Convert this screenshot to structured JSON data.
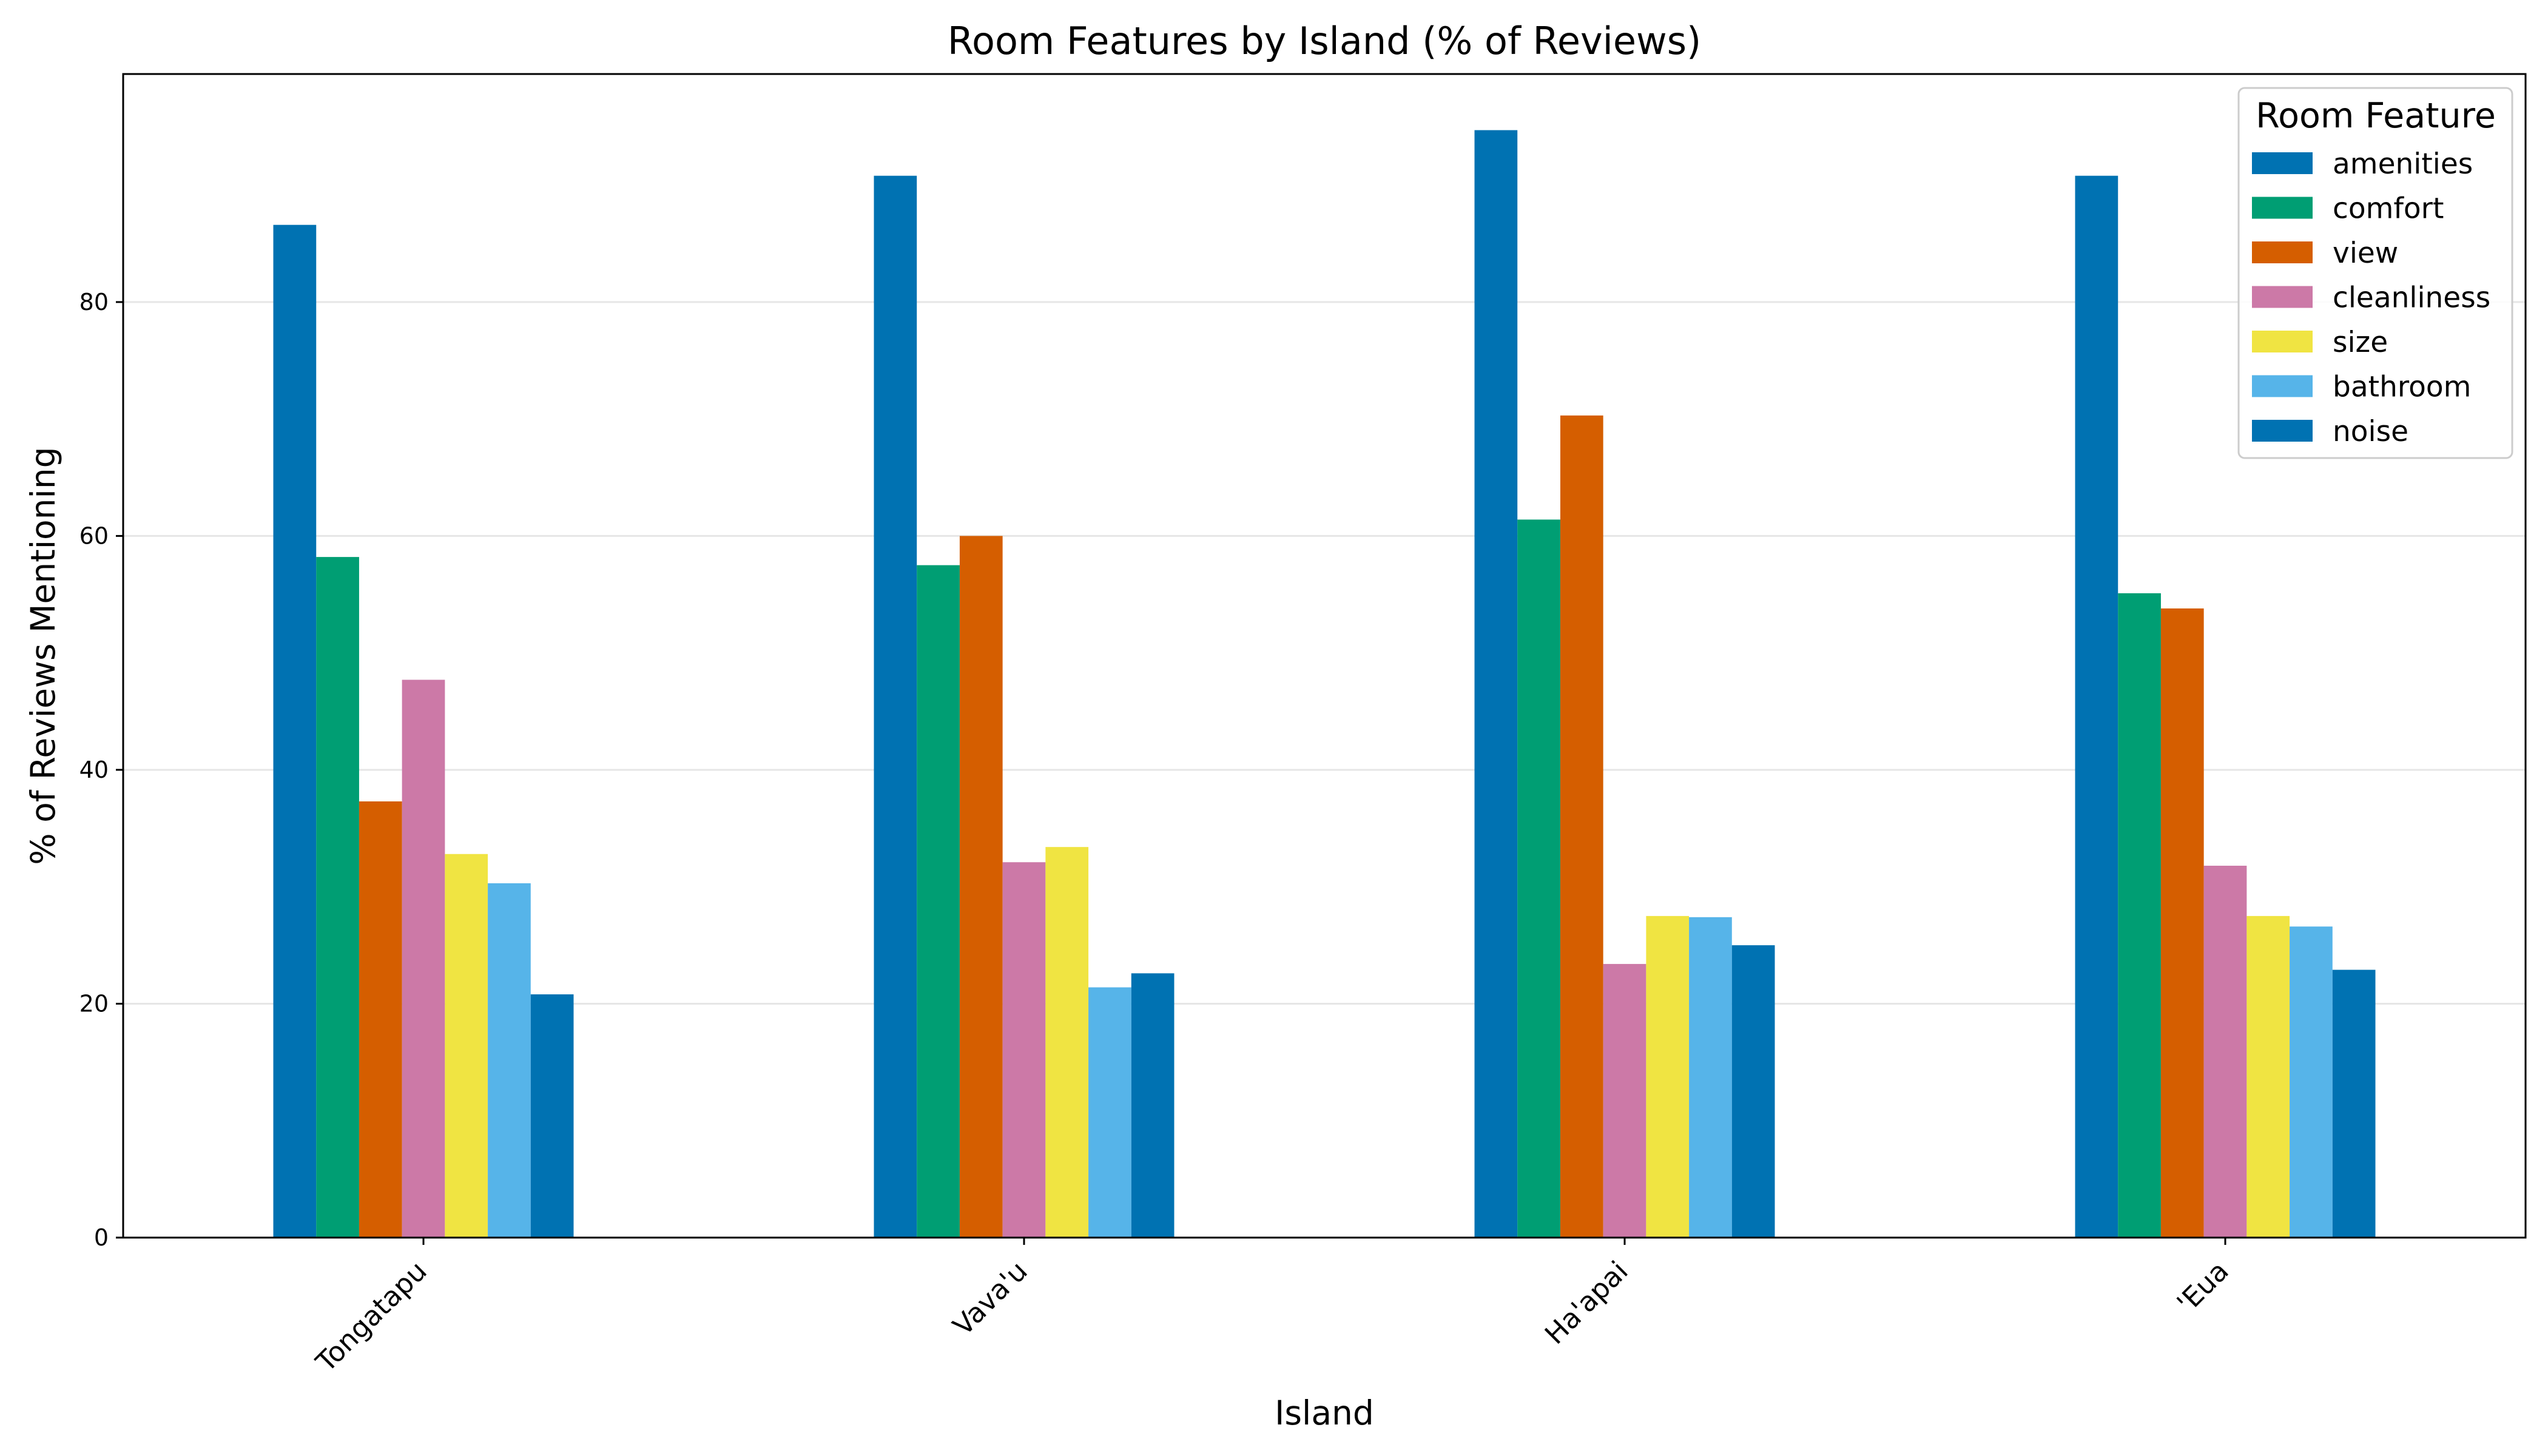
{
  "chart_data": {
    "type": "bar",
    "title": "Room Features by Island (% of Reviews)",
    "xlabel": "Island",
    "ylabel": "% of Reviews Mentioning",
    "categories": [
      "Tongatapu",
      "Vava'u",
      "Ha'apai",
      "'Eua"
    ],
    "ylim": [
      0,
      99.5
    ],
    "yticks": [
      0,
      20,
      40,
      60,
      80
    ],
    "grid": "y",
    "legend": {
      "title": "Room Feature",
      "position": "top-right"
    },
    "series": [
      {
        "name": "amenities",
        "color": "#0072b2",
        "values": [
          86.6,
          90.8,
          94.7,
          90.8
        ]
      },
      {
        "name": "comfort",
        "color": "#009e73",
        "values": [
          58.2,
          57.5,
          61.4,
          55.1
        ]
      },
      {
        "name": "view",
        "color": "#d55e00",
        "values": [
          37.3,
          60.0,
          70.3,
          53.8
        ]
      },
      {
        "name": "cleanliness",
        "color": "#cc79a7",
        "values": [
          47.7,
          32.1,
          23.4,
          31.8
        ]
      },
      {
        "name": "size",
        "color": "#f0e442",
        "values": [
          32.8,
          33.4,
          27.5,
          27.5
        ]
      },
      {
        "name": "bathroom",
        "color": "#56b4e9",
        "values": [
          30.3,
          21.4,
          27.4,
          26.6
        ]
      },
      {
        "name": "noise",
        "color": "#0072b2",
        "values": [
          20.8,
          22.6,
          25.0,
          22.9
        ]
      }
    ]
  }
}
